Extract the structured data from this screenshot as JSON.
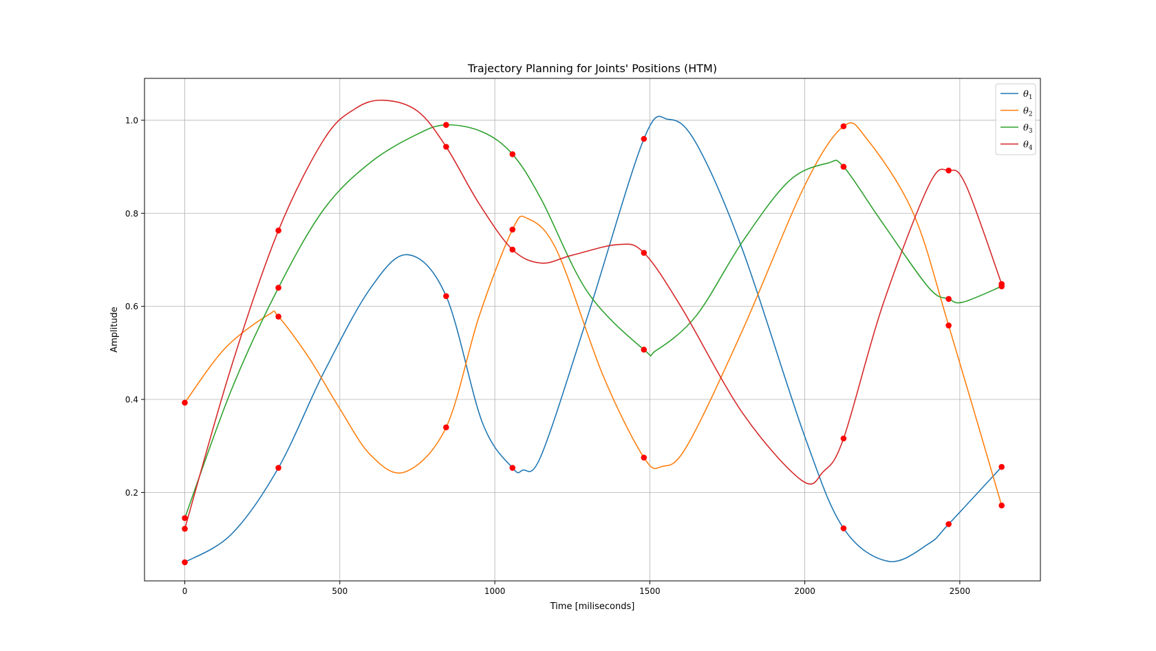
{
  "chart_data": {
    "type": "line",
    "title": "Trajectory Planning for Joints' Positions (HTM)",
    "xlabel": "Time [miliseconds]",
    "ylabel": "Amplitude",
    "xlim": [
      -130,
      2760
    ],
    "ylim": [
      0.01,
      1.09
    ],
    "xticks": [
      0,
      500,
      1000,
      1500,
      2000,
      2500
    ],
    "yticks": [
      0.2,
      0.4,
      0.6,
      0.8,
      1.0
    ],
    "xtick_labels": [
      "0",
      "500",
      "1000",
      "1500",
      "2000",
      "2500"
    ],
    "ytick_labels": [
      "0.2",
      "0.4",
      "0.6",
      "0.8",
      "1.0"
    ],
    "grid": true,
    "legend_position": "top-right",
    "knot_color": "#ff0000",
    "knot_times": [
      0,
      302,
      843,
      1057,
      1481,
      2125,
      2464,
      2635
    ],
    "series": [
      {
        "name": "θ1",
        "symbol": "θ",
        "subscript": "1",
        "color": "#1f77b4",
        "values": [
          0.05,
          0.253,
          0.622,
          0.253,
          0.96,
          0.123,
          0.132,
          0.255
        ],
        "curve": [
          [
            0,
            0.05
          ],
          [
            150,
            0.11
          ],
          [
            302,
            0.253
          ],
          [
            450,
            0.46
          ],
          [
            600,
            0.64
          ],
          [
            720,
            0.711
          ],
          [
            843,
            0.622
          ],
          [
            960,
            0.35
          ],
          [
            1057,
            0.253
          ],
          [
            1090,
            0.248
          ],
          [
            1150,
            0.28
          ],
          [
            1300,
            0.58
          ],
          [
            1481,
            0.96
          ],
          [
            1560,
            1.002
          ],
          [
            1650,
            0.95
          ],
          [
            1800,
            0.72
          ],
          [
            2000,
            0.32
          ],
          [
            2125,
            0.123
          ],
          [
            2270,
            0.052
          ],
          [
            2400,
            0.09
          ],
          [
            2464,
            0.132
          ],
          [
            2635,
            0.255
          ]
        ]
      },
      {
        "name": "θ2",
        "symbol": "θ",
        "subscript": "2",
        "color": "#ff7f0e",
        "values": [
          0.393,
          0.578,
          0.34,
          0.765,
          0.275,
          0.987,
          0.559,
          0.172
        ],
        "curve": [
          [
            0,
            0.393
          ],
          [
            130,
            0.51
          ],
          [
            270,
            0.582
          ],
          [
            302,
            0.578
          ],
          [
            400,
            0.49
          ],
          [
            500,
            0.38
          ],
          [
            600,
            0.28
          ],
          [
            710,
            0.244
          ],
          [
            843,
            0.34
          ],
          [
            950,
            0.58
          ],
          [
            1057,
            0.765
          ],
          [
            1105,
            0.789
          ],
          [
            1200,
            0.72
          ],
          [
            1350,
            0.45
          ],
          [
            1481,
            0.275
          ],
          [
            1540,
            0.256
          ],
          [
            1620,
            0.3
          ],
          [
            1800,
            0.55
          ],
          [
            2000,
            0.86
          ],
          [
            2125,
            0.987
          ],
          [
            2200,
            0.96
          ],
          [
            2350,
            0.8
          ],
          [
            2464,
            0.559
          ],
          [
            2635,
            0.172
          ]
        ]
      },
      {
        "name": "θ3",
        "symbol": "θ",
        "subscript": "3",
        "color": "#2ca02c",
        "values": [
          0.145,
          0.64,
          0.99,
          0.927,
          0.507,
          0.9,
          0.616,
          0.643
        ],
        "curve": [
          [
            0,
            0.145
          ],
          [
            150,
            0.42
          ],
          [
            302,
            0.64
          ],
          [
            450,
            0.81
          ],
          [
            600,
            0.91
          ],
          [
            750,
            0.97
          ],
          [
            843,
            0.99
          ],
          [
            960,
            0.975
          ],
          [
            1057,
            0.927
          ],
          [
            1150,
            0.83
          ],
          [
            1300,
            0.63
          ],
          [
            1481,
            0.507
          ],
          [
            1520,
            0.505
          ],
          [
            1650,
            0.58
          ],
          [
            1800,
            0.74
          ],
          [
            1950,
            0.87
          ],
          [
            2075,
            0.908
          ],
          [
            2125,
            0.9
          ],
          [
            2250,
            0.78
          ],
          [
            2400,
            0.64
          ],
          [
            2464,
            0.616
          ],
          [
            2510,
            0.609
          ],
          [
            2635,
            0.643
          ]
        ]
      },
      {
        "name": "θ4",
        "symbol": "θ",
        "subscript": "4",
        "color": "#d62728",
        "values": [
          0.122,
          0.763,
          0.943,
          0.722,
          0.715,
          0.316,
          0.892,
          0.648
        ],
        "curve": [
          [
            0,
            0.122
          ],
          [
            150,
            0.47
          ],
          [
            302,
            0.763
          ],
          [
            450,
            0.96
          ],
          [
            550,
            1.025
          ],
          [
            640,
            1.043
          ],
          [
            750,
            1.02
          ],
          [
            843,
            0.943
          ],
          [
            950,
            0.82
          ],
          [
            1057,
            0.722
          ],
          [
            1150,
            0.693
          ],
          [
            1250,
            0.71
          ],
          [
            1400,
            0.733
          ],
          [
            1481,
            0.715
          ],
          [
            1600,
            0.6
          ],
          [
            1800,
            0.37
          ],
          [
            1990,
            0.226
          ],
          [
            2060,
            0.245
          ],
          [
            2125,
            0.316
          ],
          [
            2250,
            0.6
          ],
          [
            2400,
            0.86
          ],
          [
            2464,
            0.892
          ],
          [
            2520,
            0.86
          ],
          [
            2635,
            0.648
          ]
        ]
      }
    ]
  }
}
